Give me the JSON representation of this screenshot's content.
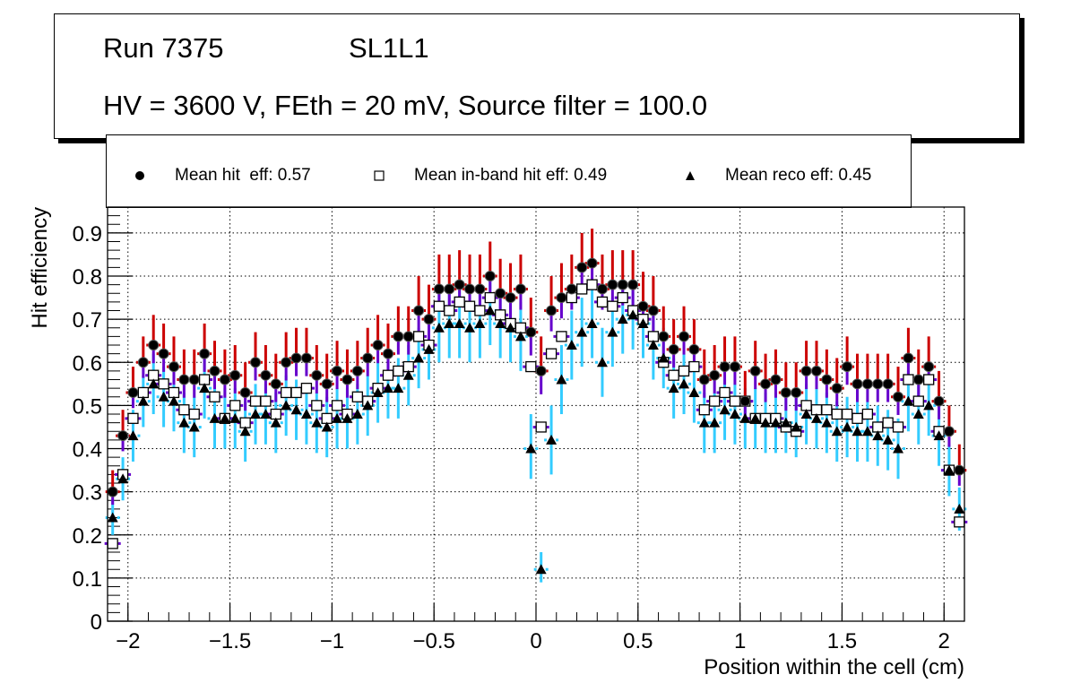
{
  "title": {
    "line1_left": "Run 7375",
    "line1_right": "SL1L1",
    "line2": "HV = 3600 V, FEth = 20 mV, Source filter = 100.0"
  },
  "legend": [
    {
      "marker": "filled-circle",
      "label": "Mean hit  eff: 0.57"
    },
    {
      "marker": "open-square",
      "label": "Mean in-band hit eff: 0.49"
    },
    {
      "marker": "filled-triangle",
      "label": "Mean reco eff: 0.45"
    }
  ],
  "colors": {
    "hit_err_upper": "#cc0000",
    "hit_err_lower": "#6600cc",
    "inband_err": "#6600cc",
    "reco_err": "#33ccff",
    "marker": "#000000",
    "grid": "#000000"
  },
  "chart_data": {
    "type": "scatter",
    "title": "",
    "xlabel": "Position within the cell (cm)",
    "ylabel": "Hit efficiency",
    "xlim": [
      -2.1,
      2.1
    ],
    "ylim": [
      0,
      0.96
    ],
    "grid": true,
    "legend_position": "top",
    "x_ticks": [
      -2,
      -1.5,
      -1,
      -0.5,
      0,
      0.5,
      1,
      1.5,
      2
    ],
    "x_tick_labels": [
      "−2",
      "−1.5",
      "−1",
      "−0.5",
      "0",
      "0.5",
      "1",
      "1.5",
      "2"
    ],
    "y_ticks": [
      0,
      0.1,
      0.2,
      0.3,
      0.4,
      0.5,
      0.6,
      0.7,
      0.8,
      0.9
    ],
    "y_tick_labels": [
      "0",
      "0.1",
      "0.2",
      "0.3",
      "0.4",
      "0.5",
      "0.6",
      "0.7",
      "0.8",
      "0.9"
    ],
    "x_start": -2.075,
    "x_step": 0.05,
    "series": [
      {
        "name": "Mean hit  eff: 0.57",
        "marker": "circle",
        "values": [
          0.3,
          0.43,
          0.53,
          0.6,
          0.64,
          0.62,
          0.59,
          0.56,
          0.56,
          0.62,
          0.58,
          0.56,
          0.57,
          0.53,
          0.6,
          0.57,
          0.55,
          0.6,
          0.61,
          0.61,
          0.57,
          0.55,
          0.58,
          0.56,
          0.58,
          0.61,
          0.64,
          0.62,
          0.66,
          0.66,
          0.72,
          0.7,
          0.77,
          0.77,
          0.78,
          0.77,
          0.77,
          0.8,
          0.76,
          0.75,
          0.77,
          0.67,
          0.58,
          0.72,
          0.75,
          0.77,
          0.82,
          0.83,
          0.77,
          0.78,
          0.78,
          0.78,
          0.73,
          0.72,
          0.66,
          0.63,
          0.66,
          0.63,
          0.56,
          0.57,
          0.59,
          0.59,
          0.51,
          0.58,
          0.55,
          0.56,
          0.53,
          0.53,
          0.58,
          0.58,
          0.56,
          0.54,
          0.59,
          0.55,
          0.55,
          0.55,
          0.55,
          0.52,
          0.61,
          0.56,
          0.59,
          0.51,
          0.44,
          0.35
        ],
        "err_up": [
          0.05,
          0.06,
          0.06,
          0.06,
          0.07,
          0.07,
          0.07,
          0.07,
          0.07,
          0.07,
          0.07,
          0.07,
          0.07,
          0.07,
          0.07,
          0.07,
          0.07,
          0.07,
          0.07,
          0.07,
          0.07,
          0.07,
          0.07,
          0.07,
          0.07,
          0.07,
          0.07,
          0.07,
          0.07,
          0.07,
          0.08,
          0.08,
          0.08,
          0.08,
          0.08,
          0.08,
          0.08,
          0.08,
          0.08,
          0.08,
          0.08,
          0.08,
          0.08,
          0.08,
          0.08,
          0.08,
          0.08,
          0.08,
          0.08,
          0.08,
          0.08,
          0.08,
          0.08,
          0.08,
          0.07,
          0.07,
          0.07,
          0.07,
          0.07,
          0.07,
          0.07,
          0.07,
          0.07,
          0.07,
          0.07,
          0.07,
          0.07,
          0.07,
          0.07,
          0.07,
          0.07,
          0.07,
          0.07,
          0.07,
          0.07,
          0.07,
          0.07,
          0.07,
          0.07,
          0.07,
          0.07,
          0.07,
          0.06,
          0.06
        ],
        "err_down": [
          0.05,
          0.06,
          0.06,
          0.06,
          0.07,
          0.07,
          0.07,
          0.07,
          0.07,
          0.07,
          0.07,
          0.07,
          0.07,
          0.07,
          0.07,
          0.07,
          0.07,
          0.07,
          0.07,
          0.07,
          0.07,
          0.07,
          0.07,
          0.07,
          0.07,
          0.07,
          0.07,
          0.07,
          0.07,
          0.07,
          0.08,
          0.08,
          0.08,
          0.08,
          0.08,
          0.08,
          0.08,
          0.08,
          0.08,
          0.08,
          0.08,
          0.09,
          0.09,
          0.08,
          0.08,
          0.08,
          0.08,
          0.08,
          0.08,
          0.08,
          0.08,
          0.08,
          0.08,
          0.08,
          0.07,
          0.07,
          0.07,
          0.07,
          0.07,
          0.07,
          0.07,
          0.07,
          0.07,
          0.07,
          0.07,
          0.07,
          0.07,
          0.07,
          0.07,
          0.07,
          0.07,
          0.07,
          0.07,
          0.07,
          0.07,
          0.07,
          0.07,
          0.07,
          0.07,
          0.07,
          0.07,
          0.07,
          0.06,
          0.06
        ]
      },
      {
        "name": "Mean in-band hit eff: 0.49",
        "marker": "open-square",
        "values": [
          0.18,
          0.34,
          0.47,
          0.53,
          0.57,
          0.55,
          0.53,
          0.49,
          0.48,
          0.56,
          0.52,
          0.47,
          0.5,
          0.46,
          0.51,
          0.51,
          0.48,
          0.53,
          0.53,
          0.54,
          0.5,
          0.47,
          0.5,
          0.48,
          0.52,
          0.51,
          0.54,
          0.57,
          0.58,
          0.59,
          0.66,
          0.64,
          0.73,
          0.72,
          0.74,
          0.73,
          0.72,
          0.75,
          0.71,
          0.69,
          0.68,
          0.59,
          0.45,
          0.62,
          0.66,
          0.75,
          0.77,
          0.78,
          0.74,
          0.73,
          0.75,
          0.72,
          0.7,
          0.66,
          0.6,
          0.57,
          0.58,
          0.59,
          0.49,
          0.51,
          0.53,
          0.51,
          0.51,
          0.47,
          0.47,
          0.47,
          0.45,
          0.44,
          0.5,
          0.49,
          0.49,
          0.48,
          0.48,
          0.47,
          0.48,
          0.45,
          0.46,
          0.45,
          0.56,
          0.51,
          0.56,
          0.44,
          0.35,
          0.23
        ],
        "err_up": [
          0.05,
          0.06,
          0.06,
          0.06,
          0.06,
          0.06,
          0.06,
          0.06,
          0.06,
          0.06,
          0.06,
          0.06,
          0.06,
          0.06,
          0.06,
          0.06,
          0.06,
          0.06,
          0.06,
          0.06,
          0.06,
          0.06,
          0.06,
          0.06,
          0.06,
          0.06,
          0.06,
          0.06,
          0.06,
          0.06,
          0.07,
          0.07,
          0.07,
          0.07,
          0.07,
          0.07,
          0.07,
          0.07,
          0.07,
          0.07,
          0.07,
          0.07,
          0.07,
          0.07,
          0.07,
          0.07,
          0.07,
          0.07,
          0.07,
          0.07,
          0.07,
          0.07,
          0.07,
          0.07,
          0.06,
          0.06,
          0.06,
          0.06,
          0.06,
          0.06,
          0.06,
          0.06,
          0.06,
          0.06,
          0.06,
          0.06,
          0.06,
          0.06,
          0.06,
          0.06,
          0.06,
          0.06,
          0.06,
          0.06,
          0.06,
          0.06,
          0.06,
          0.06,
          0.06,
          0.06,
          0.06,
          0.06,
          0.05,
          0.05
        ],
        "err_down": [
          0.04,
          0.06,
          0.06,
          0.06,
          0.06,
          0.06,
          0.06,
          0.06,
          0.06,
          0.06,
          0.06,
          0.06,
          0.06,
          0.06,
          0.06,
          0.06,
          0.06,
          0.06,
          0.06,
          0.06,
          0.06,
          0.06,
          0.06,
          0.06,
          0.06,
          0.06,
          0.06,
          0.06,
          0.06,
          0.06,
          0.07,
          0.07,
          0.07,
          0.07,
          0.07,
          0.07,
          0.07,
          0.07,
          0.07,
          0.07,
          0.07,
          0.07,
          0.08,
          0.07,
          0.07,
          0.07,
          0.07,
          0.07,
          0.07,
          0.07,
          0.07,
          0.07,
          0.07,
          0.07,
          0.06,
          0.06,
          0.06,
          0.06,
          0.06,
          0.06,
          0.06,
          0.06,
          0.06,
          0.06,
          0.06,
          0.06,
          0.06,
          0.06,
          0.06,
          0.06,
          0.06,
          0.06,
          0.06,
          0.06,
          0.06,
          0.06,
          0.06,
          0.06,
          0.06,
          0.06,
          0.06,
          0.06,
          0.05,
          0.04
        ]
      },
      {
        "name": "Mean reco eff: 0.45",
        "marker": "triangle",
        "values": [
          0.24,
          0.33,
          0.43,
          0.51,
          0.55,
          0.52,
          0.51,
          0.46,
          0.45,
          0.54,
          0.47,
          0.47,
          0.47,
          0.44,
          0.48,
          0.48,
          0.46,
          0.5,
          0.49,
          0.48,
          0.46,
          0.45,
          0.47,
          0.47,
          0.48,
          0.5,
          0.53,
          0.54,
          0.54,
          0.57,
          0.61,
          0.63,
          0.68,
          0.69,
          0.69,
          0.68,
          0.69,
          0.72,
          0.69,
          0.68,
          0.66,
          0.4,
          0.12,
          0.42,
          0.56,
          0.64,
          0.67,
          0.69,
          0.6,
          0.67,
          0.7,
          0.71,
          0.69,
          0.64,
          0.61,
          0.54,
          0.55,
          0.53,
          0.46,
          0.46,
          0.49,
          0.48,
          0.47,
          0.47,
          0.46,
          0.46,
          0.46,
          0.45,
          0.48,
          0.47,
          0.46,
          0.44,
          0.45,
          0.44,
          0.44,
          0.43,
          0.42,
          0.4,
          0.51,
          0.48,
          0.5,
          0.43,
          0.35,
          0.26
        ],
        "err_up": [
          0.04,
          0.05,
          0.06,
          0.06,
          0.07,
          0.07,
          0.07,
          0.07,
          0.07,
          0.07,
          0.07,
          0.07,
          0.07,
          0.07,
          0.07,
          0.07,
          0.07,
          0.07,
          0.07,
          0.07,
          0.07,
          0.07,
          0.07,
          0.07,
          0.07,
          0.07,
          0.07,
          0.07,
          0.07,
          0.07,
          0.07,
          0.07,
          0.08,
          0.08,
          0.08,
          0.08,
          0.08,
          0.08,
          0.08,
          0.08,
          0.08,
          0.08,
          0.04,
          0.08,
          0.08,
          0.08,
          0.08,
          0.08,
          0.08,
          0.08,
          0.08,
          0.08,
          0.08,
          0.08,
          0.07,
          0.07,
          0.07,
          0.07,
          0.07,
          0.07,
          0.07,
          0.07,
          0.07,
          0.07,
          0.07,
          0.07,
          0.07,
          0.07,
          0.07,
          0.07,
          0.07,
          0.07,
          0.07,
          0.07,
          0.07,
          0.07,
          0.07,
          0.07,
          0.07,
          0.07,
          0.07,
          0.07,
          0.06,
          0.05
        ],
        "err_down": [
          0.04,
          0.05,
          0.06,
          0.06,
          0.07,
          0.07,
          0.07,
          0.07,
          0.07,
          0.07,
          0.07,
          0.07,
          0.07,
          0.07,
          0.07,
          0.07,
          0.07,
          0.07,
          0.07,
          0.07,
          0.07,
          0.07,
          0.07,
          0.07,
          0.07,
          0.07,
          0.07,
          0.07,
          0.07,
          0.07,
          0.07,
          0.07,
          0.08,
          0.08,
          0.08,
          0.08,
          0.08,
          0.08,
          0.08,
          0.08,
          0.08,
          0.07,
          0.03,
          0.08,
          0.08,
          0.08,
          0.08,
          0.08,
          0.08,
          0.08,
          0.08,
          0.08,
          0.08,
          0.08,
          0.07,
          0.07,
          0.07,
          0.07,
          0.07,
          0.07,
          0.07,
          0.07,
          0.07,
          0.07,
          0.07,
          0.07,
          0.07,
          0.07,
          0.07,
          0.07,
          0.07,
          0.07,
          0.07,
          0.07,
          0.07,
          0.07,
          0.07,
          0.07,
          0.07,
          0.07,
          0.07,
          0.07,
          0.06,
          0.05
        ]
      }
    ]
  }
}
